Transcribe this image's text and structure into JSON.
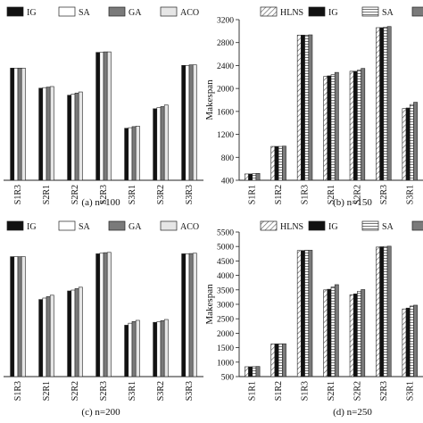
{
  "chart_data": [
    {
      "type": "bar",
      "caption": "(a) n=100",
      "ylabel": "",
      "categories": [
        "S1R3",
        "S2R1",
        "S2R2",
        "S2R3",
        "S3R1",
        "S3R2",
        "S3R3"
      ],
      "ylim": [
        400,
        3200
      ],
      "yticks": [],
      "legend_position": "top",
      "series": [
        {
          "name": "IG",
          "pattern": "solid-black",
          "values": [
            2470,
            2100,
            1970,
            2760,
            1360,
            1720,
            2520
          ]
        },
        {
          "name": "SA",
          "pattern": "white",
          "values": [
            2470,
            2110,
            1990,
            2760,
            1370,
            1740,
            2520
          ]
        },
        {
          "name": "GA",
          "pattern": "gray",
          "values": [
            2470,
            2120,
            2010,
            2770,
            1390,
            1760,
            2530
          ]
        },
        {
          "name": "ACO",
          "pattern": "light-gray",
          "values": [
            2470,
            2130,
            2030,
            2770,
            1400,
            1790,
            2530
          ]
        }
      ]
    },
    {
      "type": "bar",
      "caption": "(b) n=150",
      "ylabel": "Makespan",
      "categories": [
        "S1R1",
        "S1R2",
        "S1R3",
        "S2R1",
        "S2R2",
        "S2R3",
        "S3R1"
      ],
      "ylim": [
        400,
        3200
      ],
      "yticks": [
        400,
        800,
        1200,
        1600,
        2000,
        2400,
        2800,
        3200
      ],
      "legend_position": "top",
      "series": [
        {
          "name": "HLNS",
          "pattern": "hatched",
          "values": [
            510,
            990,
            2930,
            2210,
            2300,
            3060,
            1650
          ]
        },
        {
          "name": "IG",
          "pattern": "solid-black",
          "values": [
            510,
            990,
            2930,
            2220,
            2300,
            3060,
            1660
          ]
        },
        {
          "name": "SA",
          "pattern": "lined",
          "values": [
            515,
            990,
            2930,
            2240,
            2320,
            3070,
            1720
          ]
        },
        {
          "name": "",
          "pattern": "gray",
          "values": [
            520,
            995,
            2935,
            2280,
            2350,
            3080,
            1760
          ]
        }
      ]
    },
    {
      "type": "bar",
      "caption": "(c) n=200",
      "ylabel": "",
      "categories": [
        "S1R3",
        "S2R1",
        "S2R2",
        "S2R3",
        "S3R1",
        "S3R2",
        "S3R3"
      ],
      "ylim": [
        500,
        5500
      ],
      "yticks": [],
      "legend_position": "top",
      "series": [
        {
          "name": "IG",
          "pattern": "solid-black",
          "values": [
            4700,
            3200,
            3500,
            4800,
            2300,
            2400,
            4800
          ]
        },
        {
          "name": "SA",
          "pattern": "white",
          "values": [
            4700,
            3250,
            3530,
            4820,
            2370,
            2420,
            4800
          ]
        },
        {
          "name": "GA",
          "pattern": "gray",
          "values": [
            4700,
            3300,
            3580,
            4840,
            2430,
            2460,
            4810
          ]
        },
        {
          "name": "ACO",
          "pattern": "light-gray",
          "values": [
            4700,
            3350,
            3630,
            4850,
            2470,
            2500,
            4820
          ]
        }
      ]
    },
    {
      "type": "bar",
      "caption": "(d) n=250",
      "ylabel": "Makespan",
      "categories": [
        "S1R1",
        "S1R2",
        "S1R3",
        "S2R1",
        "S2R2",
        "S2R3",
        "S3R1"
      ],
      "ylim": [
        500,
        5500
      ],
      "yticks": [
        500,
        1000,
        1500,
        2000,
        2500,
        3000,
        3500,
        4000,
        4500,
        5000,
        5500
      ],
      "legend_position": "top",
      "series": [
        {
          "name": "HLNS",
          "pattern": "hatched",
          "values": [
            840,
            1630,
            4860,
            3500,
            3330,
            4980,
            2840
          ]
        },
        {
          "name": "IG",
          "pattern": "solid-black",
          "values": [
            840,
            1630,
            4860,
            3520,
            3360,
            4990,
            2870
          ]
        },
        {
          "name": "SA",
          "pattern": "lined",
          "values": [
            845,
            1630,
            4870,
            3600,
            3450,
            5000,
            2940
          ]
        },
        {
          "name": "",
          "pattern": "gray",
          "values": [
            850,
            1635,
            4870,
            3680,
            3510,
            5010,
            2970
          ]
        }
      ]
    }
  ]
}
